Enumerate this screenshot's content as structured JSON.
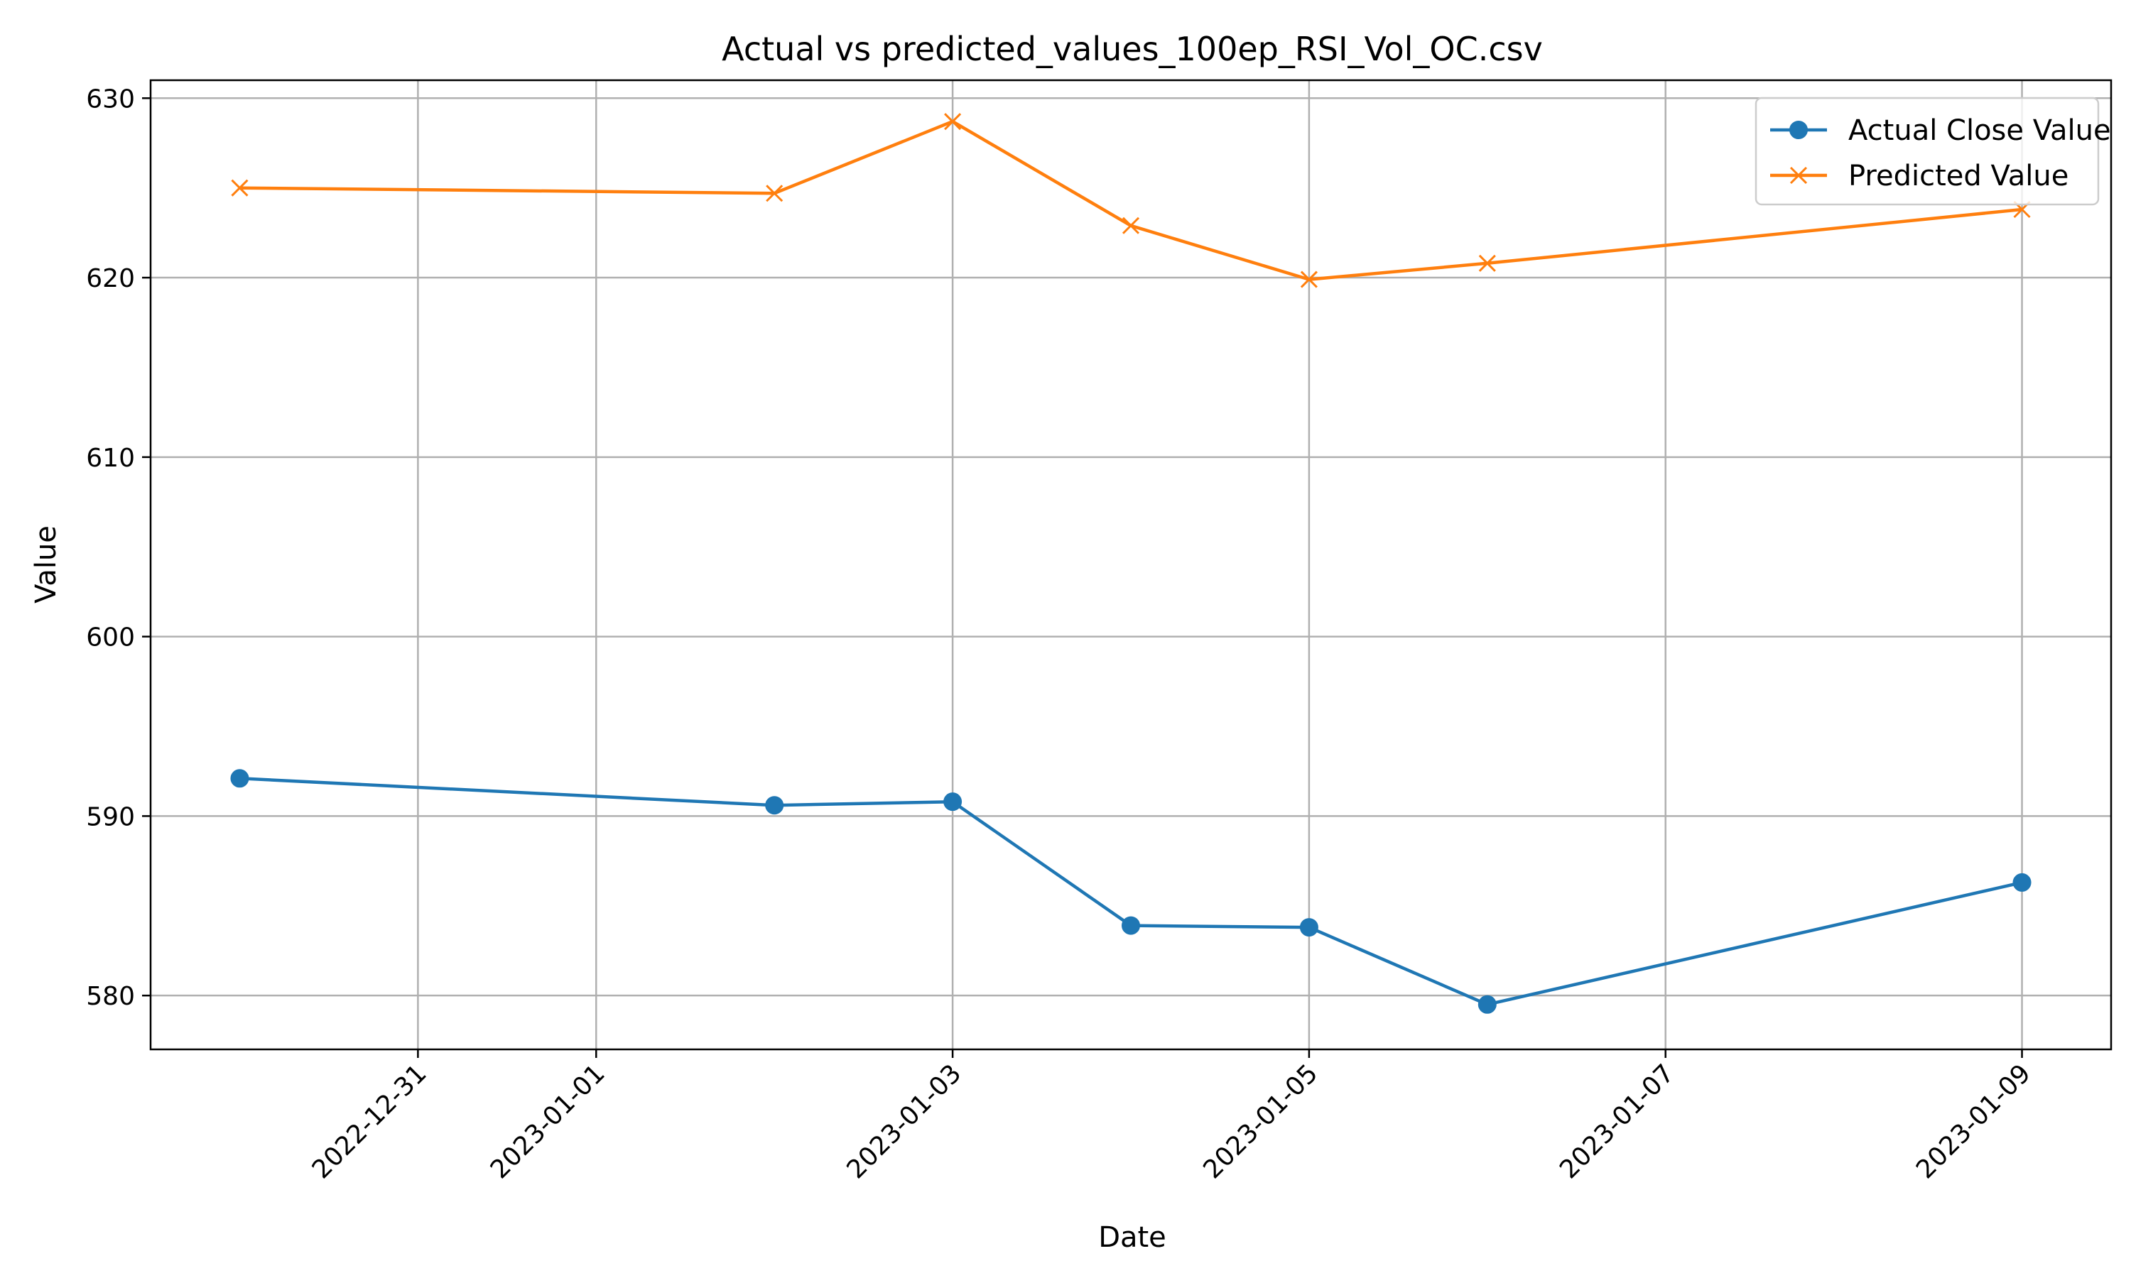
{
  "chart_data": {
    "type": "line",
    "title": "Actual vs predicted_values_100ep_RSI_Vol_OC.csv",
    "xlabel": "Date",
    "ylabel": "Value",
    "x_axis_type": "date",
    "xlim": [
      "2022-12-29T12:00",
      "2023-01-09T12:00"
    ],
    "ylim": [
      577,
      631
    ],
    "x_ticks": [
      "2022-12-31",
      "2023-01-01",
      "2023-01-03",
      "2023-01-05",
      "2023-01-07",
      "2023-01-09"
    ],
    "y_ticks": [
      580,
      590,
      600,
      610,
      620,
      630
    ],
    "grid": true,
    "legend_position": "top-right",
    "x": [
      "2022-12-30",
      "2023-01-02",
      "2023-01-03",
      "2023-01-04",
      "2023-01-05",
      "2023-01-06",
      "2023-01-09"
    ],
    "series": [
      {
        "name": "Actual Close Value",
        "color": "#1f77b4",
        "marker": "circle",
        "values": [
          592.1,
          590.6,
          590.8,
          583.9,
          583.8,
          579.5,
          586.3
        ]
      },
      {
        "name": "Predicted Value",
        "color": "#ff7f0e",
        "marker": "x",
        "values": [
          625.0,
          624.7,
          628.7,
          622.9,
          619.9,
          620.8,
          623.8
        ]
      }
    ]
  }
}
